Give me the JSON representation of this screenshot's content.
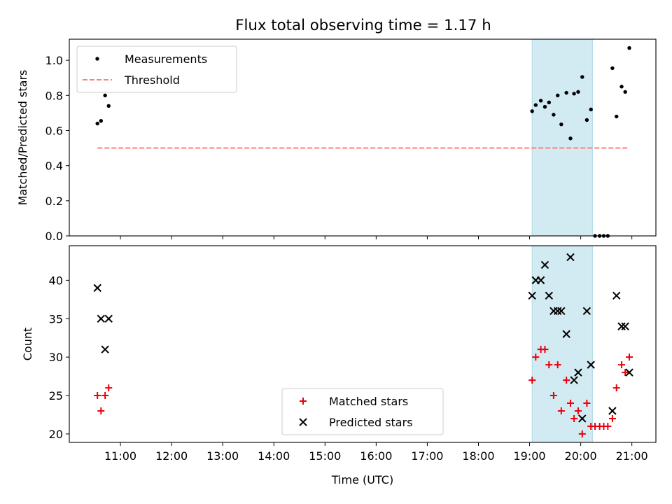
{
  "title": "Flux total observing time = 1.17 h",
  "colors": {
    "measurement": "#000000",
    "threshold": "#ff7f7f",
    "matched": "#e8000b",
    "predicted": "#000000",
    "band": "#add8e6"
  },
  "time_ticks": [
    "11:00",
    "12:00",
    "13:00",
    "14:00",
    "15:00",
    "16:00",
    "17:00",
    "18:00",
    "19:00",
    "20:00",
    "21:00"
  ],
  "chart_data": [
    {
      "type": "scatter",
      "ylabel": "Matched/Predicted stars",
      "xlim": [
        10.0,
        21.47
      ],
      "ylim": [
        0.0,
        1.12
      ],
      "y_ticks": [
        "0.0",
        "0.2",
        "0.4",
        "0.6",
        "0.8",
        "1.0"
      ],
      "y_tick_values": [
        0.0,
        0.2,
        0.4,
        0.6,
        0.8,
        1.0
      ],
      "shaded_span": [
        19.05,
        20.23
      ],
      "legend": {
        "position": "upper left",
        "labels": [
          "Measurements",
          "Threshold"
        ]
      },
      "threshold": {
        "name": "Threshold",
        "y": 0.5,
        "x_range": [
          10.55,
          20.92
        ]
      },
      "series": [
        {
          "name": "Measurements",
          "points": [
            [
              10.55,
              0.64
            ],
            [
              10.62,
              0.655
            ],
            [
              10.7,
              0.8
            ],
            [
              10.77,
              0.74
            ],
            [
              19.05,
              0.71
            ],
            [
              19.12,
              0.745
            ],
            [
              19.22,
              0.77
            ],
            [
              19.3,
              0.735
            ],
            [
              19.38,
              0.76
            ],
            [
              19.47,
              0.69
            ],
            [
              19.55,
              0.8
            ],
            [
              19.62,
              0.635
            ],
            [
              19.72,
              0.815
            ],
            [
              19.8,
              0.555
            ],
            [
              19.87,
              0.81
            ],
            [
              19.95,
              0.82
            ],
            [
              20.03,
              0.905
            ],
            [
              20.12,
              0.66
            ],
            [
              20.2,
              0.72
            ],
            [
              20.28,
              0.0
            ],
            [
              20.37,
              0.0
            ],
            [
              20.45,
              0.0
            ],
            [
              20.53,
              0.0
            ],
            [
              20.62,
              0.955
            ],
            [
              20.7,
              0.68
            ],
            [
              20.8,
              0.85
            ],
            [
              20.87,
              0.82
            ],
            [
              20.95,
              1.07
            ]
          ]
        }
      ]
    },
    {
      "type": "scatter",
      "xlabel": "Time (UTC)",
      "ylabel": "Count",
      "xlim": [
        10.0,
        21.47
      ],
      "ylim": [
        18.9,
        44.5
      ],
      "y_ticks": [
        "20",
        "25",
        "30",
        "35",
        "40"
      ],
      "y_tick_values": [
        20,
        25,
        30,
        35,
        40
      ],
      "shaded_span": [
        19.05,
        20.23
      ],
      "legend": {
        "position": "lower center",
        "labels": [
          "Matched stars",
          "Predicted stars"
        ]
      },
      "series": [
        {
          "name": "Matched stars",
          "marker": "+",
          "points": [
            [
              10.55,
              25
            ],
            [
              10.62,
              23
            ],
            [
              10.7,
              25
            ],
            [
              10.77,
              26
            ],
            [
              19.05,
              27
            ],
            [
              19.12,
              30
            ],
            [
              19.22,
              31
            ],
            [
              19.3,
              31
            ],
            [
              19.38,
              29
            ],
            [
              19.47,
              25
            ],
            [
              19.55,
              29
            ],
            [
              19.62,
              23
            ],
            [
              19.72,
              27
            ],
            [
              19.8,
              24
            ],
            [
              19.87,
              22
            ],
            [
              19.95,
              23
            ],
            [
              20.03,
              20
            ],
            [
              20.12,
              24
            ],
            [
              20.2,
              21
            ],
            [
              20.28,
              21
            ],
            [
              20.37,
              21
            ],
            [
              20.45,
              21
            ],
            [
              20.53,
              21
            ],
            [
              20.62,
              22
            ],
            [
              20.7,
              26
            ],
            [
              20.8,
              29
            ],
            [
              20.87,
              28
            ],
            [
              20.95,
              30
            ]
          ]
        },
        {
          "name": "Predicted stars",
          "marker": "x",
          "points": [
            [
              10.55,
              39
            ],
            [
              10.62,
              35
            ],
            [
              10.7,
              31
            ],
            [
              10.77,
              35
            ],
            [
              19.05,
              38
            ],
            [
              19.12,
              40
            ],
            [
              19.22,
              40
            ],
            [
              19.3,
              42
            ],
            [
              19.38,
              38
            ],
            [
              19.47,
              36
            ],
            [
              19.55,
              36
            ],
            [
              19.62,
              36
            ],
            [
              19.72,
              33
            ],
            [
              19.8,
              43
            ],
            [
              19.87,
              27
            ],
            [
              19.95,
              28
            ],
            [
              20.03,
              22
            ],
            [
              20.12,
              36
            ],
            [
              20.2,
              29
            ],
            [
              20.62,
              23
            ],
            [
              20.7,
              38
            ],
            [
              20.8,
              34
            ],
            [
              20.87,
              34
            ],
            [
              20.95,
              28
            ]
          ]
        }
      ]
    }
  ]
}
